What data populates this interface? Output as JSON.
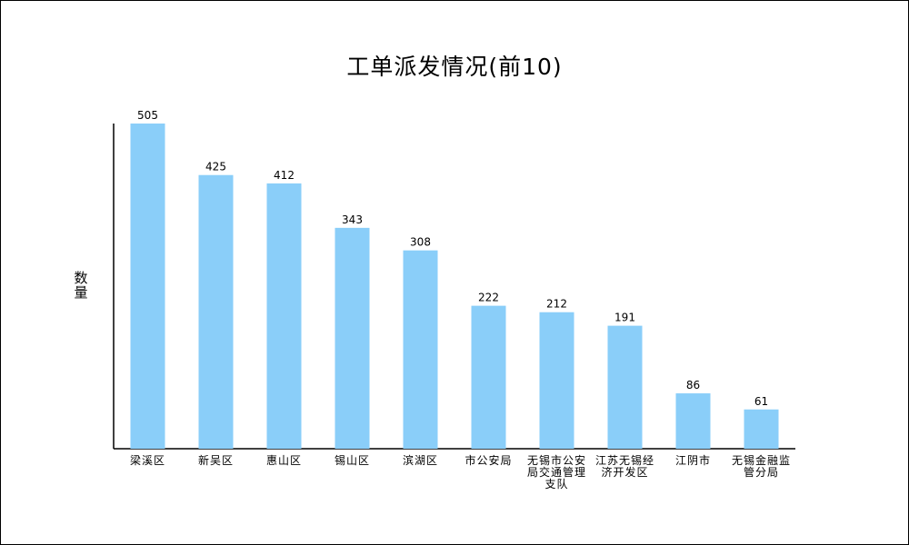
{
  "chart_data": {
    "type": "bar",
    "title": "工单派发情况(前10)",
    "xlabel": "",
    "ylabel": "数量",
    "categories": [
      "梁溪区",
      "新吴区",
      "惠山区",
      "锡山区",
      "滨湖区",
      "市公安局",
      "无锡市公安局交通管理支队",
      "江苏无锡经济开发区",
      "江阴市",
      "无锡金融监管分局"
    ],
    "values": [
      505,
      425,
      412,
      343,
      308,
      222,
      212,
      191,
      86,
      61
    ],
    "ylim": [
      0,
      520
    ],
    "grid": false,
    "legend": "none",
    "bar_color": "#8ACEF9"
  }
}
